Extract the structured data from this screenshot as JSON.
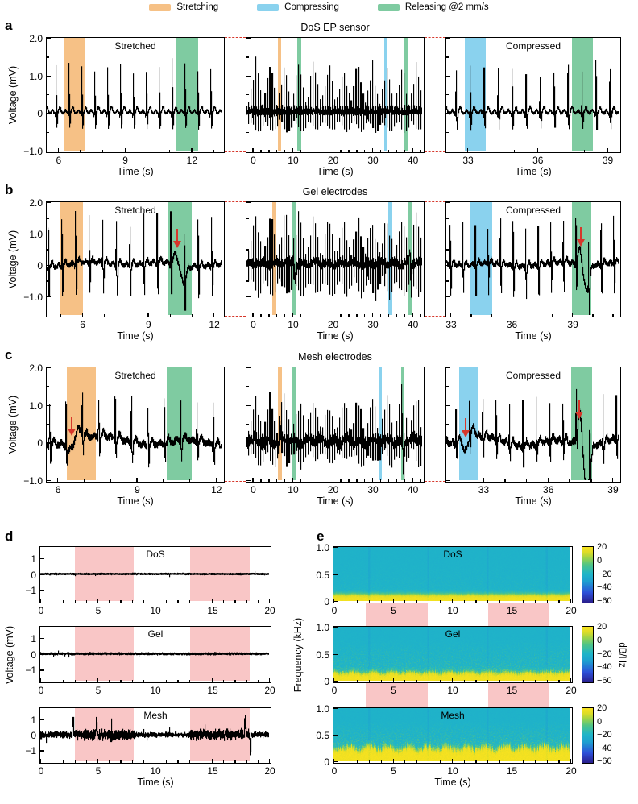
{
  "colors": {
    "stretch": "#F6C186",
    "compress": "#8AD2EE",
    "release": "#7FCBA1",
    "hold": "#F9C6C6",
    "arrow": "#D6372B",
    "callout": "#D6372B",
    "trace": "#000000",
    "frame": "#000000",
    "background": "#FFFFFF",
    "colormap_stops": [
      [
        0,
        "#2A1E8C"
      ],
      [
        0.18,
        "#2D50D8"
      ],
      [
        0.38,
        "#1E9FD0"
      ],
      [
        0.52,
        "#1FB5C8"
      ],
      [
        0.68,
        "#4FC487"
      ],
      [
        0.8,
        "#9AD34B"
      ],
      [
        0.9,
        "#DCDC28"
      ],
      [
        1,
        "#F8E21F"
      ]
    ]
  },
  "legend": {
    "items": [
      {
        "label": "Stretching",
        "color": "#F6C186"
      },
      {
        "label": "Compressing",
        "color": "#8AD2EE"
      },
      {
        "label": "Releasing @2 mm/s",
        "color": "#7FCBA1"
      }
    ]
  },
  "chart_data": [
    {
      "id": "a",
      "letter": "a",
      "type": "line",
      "title": "DoS EP sensor",
      "ylabel": "Voltage (mV)",
      "ylim": [
        -1,
        2
      ],
      "yticks": [
        2,
        1,
        0,
        -1
      ],
      "ytick_labels": [
        "2.0",
        "1.0",
        "0",
        "−1.0"
      ],
      "subplots": [
        {
          "label": "Stretched",
          "xlabel": "Time (s)",
          "xlim": [
            5.5,
            13.4
          ],
          "xticks": [
            6,
            9,
            12
          ],
          "xtick_labels": [
            "6",
            "9",
            "12"
          ],
          "minor_x": 1,
          "bands": [
            {
              "kind": "stretch",
              "range": [
                6.3,
                7.2
              ]
            },
            {
              "kind": "release",
              "range": [
                11.3,
                12.3
              ]
            }
          ],
          "arrows": [],
          "signal": {
            "kind": "ecg",
            "period": 0.58,
            "r": 1.28,
            "s": -0.42,
            "noise": 0.022,
            "wander": 0,
            "seed": 11,
            "artifacts": []
          }
        },
        {
          "label": "",
          "xlabel": "Time (s)",
          "xlim": [
            -1.5,
            42.5
          ],
          "xticks": [
            0,
            10,
            20,
            30,
            40
          ],
          "xtick_labels": [
            "0",
            "10",
            "20",
            "30",
            "40"
          ],
          "minor_x": 2,
          "bands": [
            {
              "kind": "stretch",
              "range": [
                6.3,
                7.2
              ]
            },
            {
              "kind": "release",
              "range": [
                11.3,
                12.3
              ]
            },
            {
              "kind": "compress",
              "range": [
                33,
                33.9
              ]
            },
            {
              "kind": "release",
              "range": [
                37.9,
                38.8
              ]
            }
          ],
          "arrows": [],
          "signal": {
            "kind": "ecg",
            "period": 0.6,
            "r": 1.3,
            "s": -0.5,
            "noise": 0.05,
            "wander": 0,
            "seed": 12,
            "artifacts": []
          }
        },
        {
          "label": "Compressed",
          "xlabel": "Time (s)",
          "xlim": [
            32.1,
            39.5
          ],
          "xticks": [
            33,
            36,
            39
          ],
          "xtick_labels": [
            "33",
            "36",
            "39"
          ],
          "minor_x": 1,
          "bands": [
            {
              "kind": "compress",
              "range": [
                32.9,
                33.8
              ]
            },
            {
              "kind": "release",
              "range": [
                37.5,
                38.4
              ]
            }
          ],
          "arrows": [],
          "signal": {
            "kind": "ecg",
            "period": 0.6,
            "r": 1.3,
            "s": -0.42,
            "noise": 0.03,
            "wander": 0,
            "seed": 13,
            "artifacts": []
          }
        }
      ]
    },
    {
      "id": "b",
      "letter": "b",
      "type": "line",
      "title": "Gel electrodes",
      "ylabel": "Voltage (mV)",
      "ylim": [
        -1.6,
        2
      ],
      "yticks": [
        2,
        1,
        0,
        -1
      ],
      "ytick_labels": [
        "2.0",
        "1.0",
        "0",
        "−1.0"
      ],
      "subplots": [
        {
          "label": "Stretched",
          "xlabel": "Time (s)",
          "xlim": [
            4.4,
            12.4
          ],
          "xticks": [
            6,
            9,
            12
          ],
          "xtick_labels": [
            "6",
            "9",
            "12"
          ],
          "minor_x": 1,
          "bands": [
            {
              "kind": "stretch",
              "range": [
                5.0,
                6.05
              ]
            },
            {
              "kind": "release",
              "range": [
                9.95,
                11.0
              ]
            }
          ],
          "arrows": [
            {
              "x": 10.35,
              "y": 0.5
            }
          ],
          "signal": {
            "kind": "ecg",
            "period": 0.62,
            "r": 1.55,
            "s": -1.0,
            "noise": 0.07,
            "wander": 0.05,
            "seed": 21,
            "artifacts": [
              {
                "x": 10.3,
                "up": 0.35,
                "down": -0.5
              }
            ]
          }
        },
        {
          "label": "",
          "xlabel": "Time (s)",
          "xlim": [
            -1.5,
            42.5
          ],
          "xticks": [
            0,
            10,
            20,
            30,
            40
          ],
          "xtick_labels": [
            "0",
            "10",
            "20",
            "30",
            "40"
          ],
          "minor_x": 2,
          "bands": [
            {
              "kind": "stretch",
              "range": [
                5.0,
                6.0
              ]
            },
            {
              "kind": "release",
              "range": [
                10,
                11
              ]
            },
            {
              "kind": "compress",
              "range": [
                34,
                35
              ]
            },
            {
              "kind": "release",
              "range": [
                39,
                40
              ]
            }
          ],
          "arrows": [],
          "signal": {
            "kind": "ecg",
            "period": 0.6,
            "r": 1.6,
            "s": -1.05,
            "noise": 0.09,
            "wander": 0.05,
            "seed": 22,
            "artifacts": [
              {
                "x": 10.3,
                "up": 0.35,
                "down": -0.5
              },
              {
                "x": 39.4,
                "up": 0.45,
                "down": -0.7
              }
            ]
          }
        },
        {
          "label": "Compressed",
          "xlabel": "Time (s)",
          "xlim": [
            32.8,
            41.3
          ],
          "xticks": [
            33,
            36,
            39
          ],
          "xtick_labels": [
            "33",
            "36",
            "39"
          ],
          "minor_x": 1,
          "bands": [
            {
              "kind": "compress",
              "range": [
                34,
                35.05
              ]
            },
            {
              "kind": "release",
              "range": [
                39.0,
                39.95
              ]
            }
          ],
          "arrows": [
            {
              "x": 39.45,
              "y": 0.55
            }
          ],
          "signal": {
            "kind": "ecg",
            "period": 0.62,
            "r": 1.5,
            "s": -1.0,
            "noise": 0.07,
            "wander": 0.05,
            "seed": 23,
            "artifacts": [
              {
                "x": 39.4,
                "up": 0.5,
                "down": -0.8
              }
            ]
          }
        }
      ]
    },
    {
      "id": "c",
      "letter": "c",
      "type": "line",
      "title": "Mesh electrodes",
      "ylabel": "Voltage (mV)",
      "ylim": [
        -1,
        2
      ],
      "yticks": [
        2,
        1,
        0,
        -1
      ],
      "ytick_labels": [
        "2.0",
        "1.0",
        "0",
        "−1.0"
      ],
      "subplots": [
        {
          "label": "Stretched",
          "xlabel": "Time (s)",
          "xlim": [
            5.6,
            12.25
          ],
          "xticks": [
            6,
            9,
            12
          ],
          "xtick_labels": [
            "6",
            "9",
            "12"
          ],
          "minor_x": 1,
          "bands": [
            {
              "kind": "stretch",
              "range": [
                6.35,
                7.45
              ]
            },
            {
              "kind": "release",
              "range": [
                10.15,
                11.1
              ]
            }
          ],
          "arrows": [
            {
              "x": 6.55,
              "y": 0.15
            }
          ],
          "signal": {
            "kind": "ecg",
            "period": 0.62,
            "r": 1.18,
            "s": -0.5,
            "noise": 0.08,
            "wander": 0.09,
            "seed": 31,
            "artifacts": [
              {
                "x": 6.5,
                "up": -0.3,
                "down": 0.3
              }
            ]
          }
        },
        {
          "label": "",
          "xlabel": "Time (s)",
          "xlim": [
            -1.5,
            42.5
          ],
          "xticks": [
            0,
            10,
            20,
            30,
            40
          ],
          "xtick_labels": [
            "0",
            "10",
            "20",
            "30",
            "40"
          ],
          "minor_x": 2,
          "bands": [
            {
              "kind": "stretch",
              "range": [
                6.4,
                7.4
              ]
            },
            {
              "kind": "release",
              "range": [
                10.1,
                11.0
              ]
            },
            {
              "kind": "compress",
              "range": [
                31.7,
                32.5
              ]
            },
            {
              "kind": "release",
              "range": [
                37.2,
                38.1
              ]
            }
          ],
          "arrows": [],
          "signal": {
            "kind": "ecg",
            "period": 0.6,
            "r": 1.25,
            "s": -0.6,
            "noise": 0.09,
            "wander": 0.07,
            "seed": 32,
            "artifacts": [
              {
                "x": 6.5,
                "up": -0.3,
                "down": 0.3
              },
              {
                "x": 37.5,
                "up": 0.7,
                "down": -0.9
              }
            ]
          }
        },
        {
          "label": "Compressed",
          "xlabel": "Time (s)",
          "xlim": [
            31.3,
            39.3
          ],
          "xticks": [
            33,
            36,
            39
          ],
          "xtick_labels": [
            "33",
            "36",
            "39"
          ],
          "minor_x": 1,
          "bands": [
            {
              "kind": "compress",
              "range": [
                31.9,
                32.8
              ]
            },
            {
              "kind": "release",
              "range": [
                37.1,
                38.05
              ]
            }
          ],
          "arrows": [
            {
              "x": 32.2,
              "y": 0.12
            },
            {
              "x": 37.45,
              "y": 0.6
            }
          ],
          "signal": {
            "kind": "ecg",
            "period": 0.62,
            "r": 1.18,
            "s": -0.5,
            "noise": 0.08,
            "wander": 0.09,
            "seed": 33,
            "artifacts": [
              {
                "x": 32.2,
                "up": -0.3,
                "down": 0.2
              },
              {
                "x": 37.5,
                "up": 0.9,
                "down": -1.1
              }
            ]
          }
        }
      ]
    },
    {
      "id": "d",
      "letter": "d",
      "type": "line",
      "ylabel": "Voltage (mV)",
      "xlabel": "Time (s)",
      "xlim": [
        0,
        20
      ],
      "xticks": [
        0,
        5,
        10,
        15,
        20
      ],
      "xtick_labels": [
        "0",
        "5",
        "10",
        "15",
        "20"
      ],
      "minor_x": 1,
      "ylim": [
        -1.7,
        1.7
      ],
      "yticks": [
        1,
        0,
        -1
      ],
      "ytick_labels": [
        "1",
        "0",
        "−1"
      ],
      "bands": [
        {
          "kind": "hold",
          "range": [
            3,
            8.2
          ]
        },
        {
          "kind": "hold",
          "range": [
            13.1,
            18.3
          ]
        }
      ],
      "rows": [
        {
          "title": "DoS",
          "seed": 41,
          "segments": [
            [
              0,
              20,
              0.035
            ]
          ],
          "spikes": []
        },
        {
          "title": "Gel",
          "seed": 42,
          "segments": [
            [
              0,
              20,
              0.05
            ]
          ],
          "spikes": []
        },
        {
          "title": "Mesh",
          "seed": 43,
          "segments": [
            [
              0,
              2.8,
              0.17
            ],
            [
              2.8,
              8.2,
              0.3
            ],
            [
              8.2,
              13,
              0.12
            ],
            [
              13,
              18.3,
              0.28
            ],
            [
              18.3,
              20,
              0.16
            ]
          ],
          "spikes": [
            [
              2.85,
              1.1
            ],
            [
              4.9,
              0.9
            ],
            [
              17.9,
              0.95
            ],
            [
              18.35,
              -1.25
            ]
          ]
        }
      ]
    },
    {
      "id": "e",
      "letter": "e",
      "type": "spectrogram",
      "ylabel": "Frequency (kHz)",
      "xlabel": "Time (s)",
      "xlim": [
        0,
        20
      ],
      "xticks": [
        0,
        5,
        10,
        15,
        20
      ],
      "xtick_labels": [
        "0",
        "5",
        "10",
        "15",
        "20"
      ],
      "minor_x": 1,
      "ylim": [
        0,
        1
      ],
      "yticks": [
        1,
        0.5,
        0
      ],
      "ytick_labels": [
        "1.0",
        "0.5",
        "0"
      ],
      "gap_bands": [
        {
          "kind": "hold",
          "range": [
            2.8,
            8.05
          ]
        },
        {
          "kind": "hold",
          "range": [
            13.1,
            18.25
          ]
        }
      ],
      "colorbar": {
        "tick_labels": [
          "20",
          "0",
          "−20",
          "−40",
          "−60"
        ],
        "tick_values": [
          20,
          0,
          -20,
          -40,
          -60
        ],
        "label": "dB/Hz"
      },
      "rows": [
        {
          "title": "DoS",
          "seed": 51,
          "band": 0.13,
          "streak": 0.06,
          "speckle": 0.06
        },
        {
          "title": "Gel",
          "seed": 52,
          "band": 0.16,
          "streak": 0.2,
          "speckle": 0.2
        },
        {
          "title": "Mesh",
          "seed": 53,
          "band": 0.26,
          "streak": 0.3,
          "speckle": 0.28
        }
      ]
    }
  ]
}
